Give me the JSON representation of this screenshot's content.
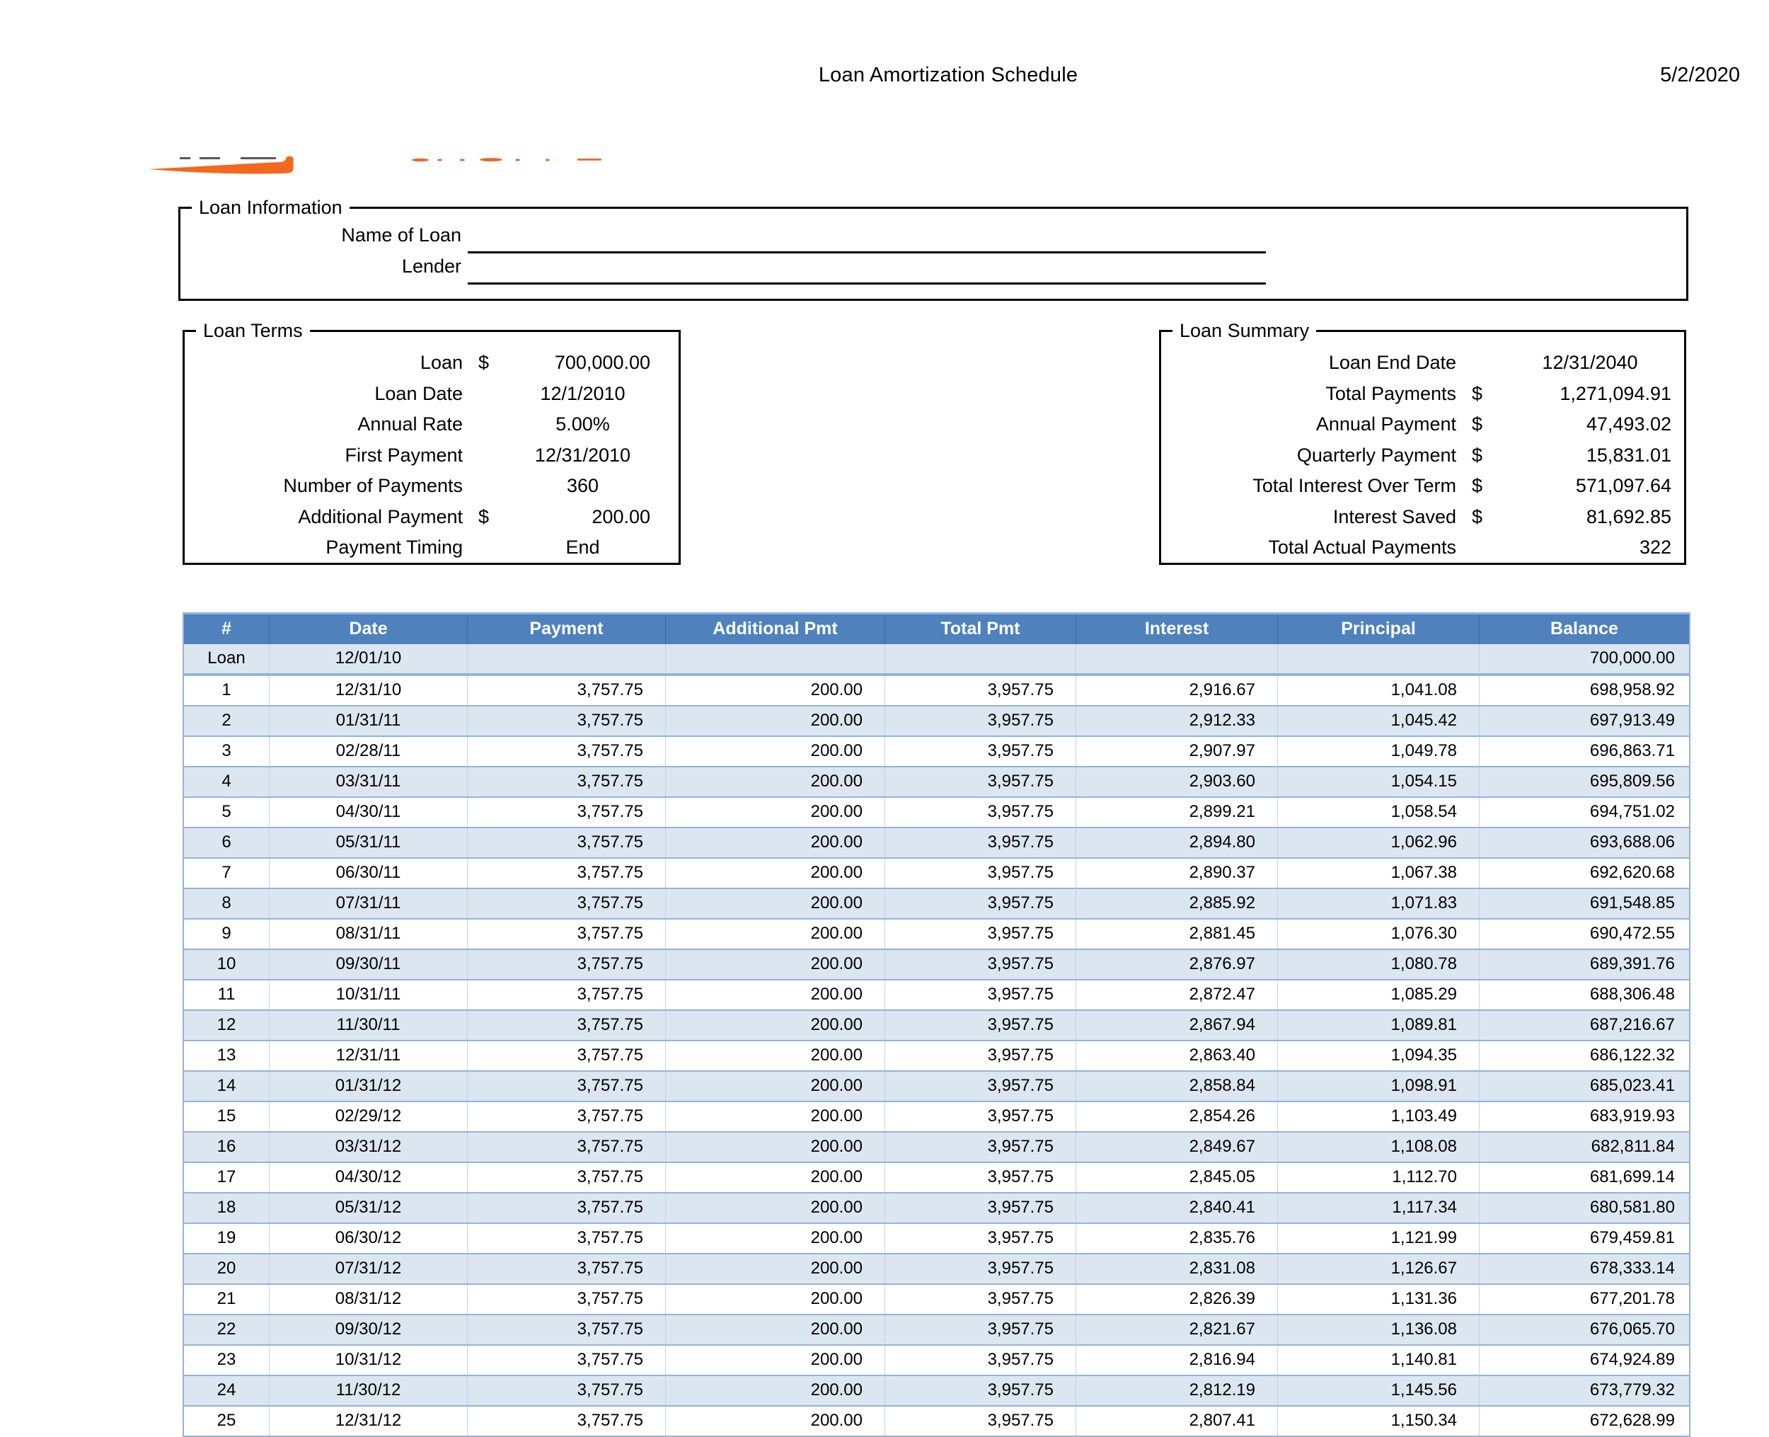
{
  "page": {
    "title": "Loan Amortization Schedule",
    "date": "5/2/2020"
  },
  "colors": {
    "table_header_blue": "#4F81BD",
    "band_row_blue": "#DCE6F1",
    "table_border_blue": "#95B3D7",
    "logo_orange": "#F2681F"
  },
  "logo": {
    "name": "company-logo-swoosh",
    "note_visible_part": "orange swoosh with gray dashes and clipped orange letter bottoms"
  },
  "loan_information": {
    "section_title": "Loan Information",
    "fields": [
      {
        "label": "Name of Loan",
        "value": ""
      },
      {
        "label": "Lender",
        "value": ""
      }
    ]
  },
  "loan_terms": {
    "section_title": "Loan Terms",
    "rows": [
      {
        "label": "Loan",
        "currency": "$",
        "value": "700,000.00",
        "align": "right"
      },
      {
        "label": "Loan Date",
        "currency": "",
        "value": "12/1/2010",
        "align": "center"
      },
      {
        "label": "Annual Rate",
        "currency": "",
        "value": "5.00%",
        "align": "center"
      },
      {
        "label": "First Payment",
        "currency": "",
        "value": "12/31/2010",
        "align": "center"
      },
      {
        "label": "Number of Payments",
        "currency": "",
        "value": "360",
        "align": "center"
      },
      {
        "label": "Additional Payment",
        "currency": "$",
        "value": "200.00",
        "align": "right"
      },
      {
        "label": "Payment Timing",
        "currency": "",
        "value": "End",
        "align": "center"
      }
    ]
  },
  "loan_summary": {
    "section_title": "Loan Summary",
    "rows": [
      {
        "label": "Loan End Date",
        "currency": "",
        "value": "12/31/2040",
        "align": "center"
      },
      {
        "label": "Total Payments",
        "currency": "$",
        "value": "1,271,094.91",
        "align": "right"
      },
      {
        "label": "Annual Payment",
        "currency": "$",
        "value": "47,493.02",
        "align": "right"
      },
      {
        "label": "Quarterly Payment",
        "currency": "$",
        "value": "15,831.01",
        "align": "right"
      },
      {
        "label": "Total Interest Over Term",
        "currency": "$",
        "value": "571,097.64",
        "align": "right"
      },
      {
        "label": "Interest Saved",
        "currency": "$",
        "value": "81,692.85",
        "align": "right"
      },
      {
        "label": "Total Actual Payments",
        "currency": "",
        "value": "322",
        "align": "right"
      }
    ]
  },
  "schedule_table": {
    "columns": [
      "#",
      "Date",
      "Payment",
      "Additional Pmt",
      "Total Pmt",
      "Interest",
      "Principal",
      "Balance"
    ],
    "loan_row": {
      "n": "Loan",
      "date": "12/01/10",
      "payment": "",
      "additional": "",
      "total": "",
      "interest": "",
      "principal": "",
      "balance": "700,000.00"
    },
    "rows": [
      {
        "n": "1",
        "date": "12/31/10",
        "payment": "3,757.75",
        "additional": "200.00",
        "total": "3,957.75",
        "interest": "2,916.67",
        "principal": "1,041.08",
        "balance": "698,958.92"
      },
      {
        "n": "2",
        "date": "01/31/11",
        "payment": "3,757.75",
        "additional": "200.00",
        "total": "3,957.75",
        "interest": "2,912.33",
        "principal": "1,045.42",
        "balance": "697,913.49"
      },
      {
        "n": "3",
        "date": "02/28/11",
        "payment": "3,757.75",
        "additional": "200.00",
        "total": "3,957.75",
        "interest": "2,907.97",
        "principal": "1,049.78",
        "balance": "696,863.71"
      },
      {
        "n": "4",
        "date": "03/31/11",
        "payment": "3,757.75",
        "additional": "200.00",
        "total": "3,957.75",
        "interest": "2,903.60",
        "principal": "1,054.15",
        "balance": "695,809.56"
      },
      {
        "n": "5",
        "date": "04/30/11",
        "payment": "3,757.75",
        "additional": "200.00",
        "total": "3,957.75",
        "interest": "2,899.21",
        "principal": "1,058.54",
        "balance": "694,751.02"
      },
      {
        "n": "6",
        "date": "05/31/11",
        "payment": "3,757.75",
        "additional": "200.00",
        "total": "3,957.75",
        "interest": "2,894.80",
        "principal": "1,062.96",
        "balance": "693,688.06"
      },
      {
        "n": "7",
        "date": "06/30/11",
        "payment": "3,757.75",
        "additional": "200.00",
        "total": "3,957.75",
        "interest": "2,890.37",
        "principal": "1,067.38",
        "balance": "692,620.68"
      },
      {
        "n": "8",
        "date": "07/31/11",
        "payment": "3,757.75",
        "additional": "200.00",
        "total": "3,957.75",
        "interest": "2,885.92",
        "principal": "1,071.83",
        "balance": "691,548.85"
      },
      {
        "n": "9",
        "date": "08/31/11",
        "payment": "3,757.75",
        "additional": "200.00",
        "total": "3,957.75",
        "interest": "2,881.45",
        "principal": "1,076.30",
        "balance": "690,472.55"
      },
      {
        "n": "10",
        "date": "09/30/11",
        "payment": "3,757.75",
        "additional": "200.00",
        "total": "3,957.75",
        "interest": "2,876.97",
        "principal": "1,080.78",
        "balance": "689,391.76"
      },
      {
        "n": "11",
        "date": "10/31/11",
        "payment": "3,757.75",
        "additional": "200.00",
        "total": "3,957.75",
        "interest": "2,872.47",
        "principal": "1,085.29",
        "balance": "688,306.48"
      },
      {
        "n": "12",
        "date": "11/30/11",
        "payment": "3,757.75",
        "additional": "200.00",
        "total": "3,957.75",
        "interest": "2,867.94",
        "principal": "1,089.81",
        "balance": "687,216.67"
      },
      {
        "n": "13",
        "date": "12/31/11",
        "payment": "3,757.75",
        "additional": "200.00",
        "total": "3,957.75",
        "interest": "2,863.40",
        "principal": "1,094.35",
        "balance": "686,122.32"
      },
      {
        "n": "14",
        "date": "01/31/12",
        "payment": "3,757.75",
        "additional": "200.00",
        "total": "3,957.75",
        "interest": "2,858.84",
        "principal": "1,098.91",
        "balance": "685,023.41"
      },
      {
        "n": "15",
        "date": "02/29/12",
        "payment": "3,757.75",
        "additional": "200.00",
        "total": "3,957.75",
        "interest": "2,854.26",
        "principal": "1,103.49",
        "balance": "683,919.93"
      },
      {
        "n": "16",
        "date": "03/31/12",
        "payment": "3,757.75",
        "additional": "200.00",
        "total": "3,957.75",
        "interest": "2,849.67",
        "principal": "1,108.08",
        "balance": "682,811.84"
      },
      {
        "n": "17",
        "date": "04/30/12",
        "payment": "3,757.75",
        "additional": "200.00",
        "total": "3,957.75",
        "interest": "2,845.05",
        "principal": "1,112.70",
        "balance": "681,699.14"
      },
      {
        "n": "18",
        "date": "05/31/12",
        "payment": "3,757.75",
        "additional": "200.00",
        "total": "3,957.75",
        "interest": "2,840.41",
        "principal": "1,117.34",
        "balance": "680,581.80"
      },
      {
        "n": "19",
        "date": "06/30/12",
        "payment": "3,757.75",
        "additional": "200.00",
        "total": "3,957.75",
        "interest": "2,835.76",
        "principal": "1,121.99",
        "balance": "679,459.81"
      },
      {
        "n": "20",
        "date": "07/31/12",
        "payment": "3,757.75",
        "additional": "200.00",
        "total": "3,957.75",
        "interest": "2,831.08",
        "principal": "1,126.67",
        "balance": "678,333.14"
      },
      {
        "n": "21",
        "date": "08/31/12",
        "payment": "3,757.75",
        "additional": "200.00",
        "total": "3,957.75",
        "interest": "2,826.39",
        "principal": "1,131.36",
        "balance": "677,201.78"
      },
      {
        "n": "22",
        "date": "09/30/12",
        "payment": "3,757.75",
        "additional": "200.00",
        "total": "3,957.75",
        "interest": "2,821.67",
        "principal": "1,136.08",
        "balance": "676,065.70"
      },
      {
        "n": "23",
        "date": "10/31/12",
        "payment": "3,757.75",
        "additional": "200.00",
        "total": "3,957.75",
        "interest": "2,816.94",
        "principal": "1,140.81",
        "balance": "674,924.89"
      },
      {
        "n": "24",
        "date": "11/30/12",
        "payment": "3,757.75",
        "additional": "200.00",
        "total": "3,957.75",
        "interest": "2,812.19",
        "principal": "1,145.56",
        "balance": "673,779.32"
      },
      {
        "n": "25",
        "date": "12/31/12",
        "payment": "3,757.75",
        "additional": "200.00",
        "total": "3,957.75",
        "interest": "2,807.41",
        "principal": "1,150.34",
        "balance": "672,628.99"
      }
    ]
  }
}
